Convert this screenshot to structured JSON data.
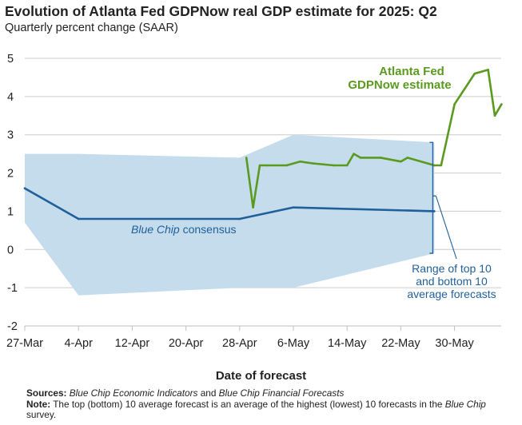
{
  "chart_data": {
    "type": "line",
    "title": "Evolution of Atlanta Fed GDPNow real GDP estimate for 2025: Q2",
    "subtitle": "Quarterly percent change (SAAR)",
    "xlabel": "Date of forecast",
    "ylabel": "",
    "ylim": [
      -2,
      5
    ],
    "yticks": [
      "5",
      "4",
      "3",
      "2",
      "1",
      "0",
      "-1",
      "-2"
    ],
    "xticks": [
      "27-Mar",
      "4-Apr",
      "12-Apr",
      "20-Apr",
      "28-Apr",
      "6-May",
      "14-May",
      "22-May",
      "30-May"
    ],
    "grid": true,
    "series": [
      {
        "name": "Atlanta Fed GDPNow estimate",
        "color": "#5a9a1f",
        "x": [
          "2025-04-29",
          "2025-04-30",
          "2025-05-01",
          "2025-05-02",
          "2025-05-05",
          "2025-05-07",
          "2025-05-09",
          "2025-05-12",
          "2025-05-14",
          "2025-05-15",
          "2025-05-16",
          "2025-05-19",
          "2025-05-22",
          "2025-05-23",
          "2025-05-27",
          "2025-05-28",
          "2025-05-30",
          "2025-06-02",
          "2025-06-04",
          "2025-06-05",
          "2025-06-06"
        ],
        "values": [
          2.4,
          1.1,
          2.2,
          2.2,
          2.2,
          2.3,
          2.25,
          2.2,
          2.2,
          2.5,
          2.4,
          2.4,
          2.3,
          2.4,
          2.2,
          2.2,
          3.8,
          4.6,
          4.7,
          3.5,
          3.8
        ]
      },
      {
        "name": "Blue Chip consensus",
        "color": "#1f5f9a",
        "x": [
          "2025-03-27",
          "2025-04-04",
          "2025-04-28",
          "2025-05-06",
          "2025-05-27"
        ],
        "values": [
          1.6,
          0.8,
          0.8,
          1.1,
          1.0
        ]
      }
    ],
    "band": {
      "label": "Range of top 10 and bottom 10 average forecasts",
      "color": "#c5dcec",
      "x": [
        "2025-03-27",
        "2025-04-04",
        "2025-04-28",
        "2025-05-06",
        "2025-05-27"
      ],
      "upper": [
        2.5,
        2.5,
        2.4,
        3.0,
        2.8
      ],
      "lower": [
        0.7,
        -1.2,
        -1.0,
        -1.0,
        -0.1
      ]
    },
    "annotations": {
      "gdpnow_line1": "Atlanta Fed",
      "gdpnow_line2": "GDPNow estimate",
      "bluechip_italic": "Blue Chip",
      "bluechip_rest": " consensus",
      "range_line1": "Range of top 10",
      "range_line2": "and bottom 10",
      "range_line3": "average forecasts"
    }
  },
  "footer": {
    "sources_label": "Sources:",
    "sources_text_1": "Blue Chip Economic Indicators",
    "sources_and": " and ",
    "sources_text_2": "Blue Chip Financial Forecasts",
    "note_label": "Note:",
    "note_text_1": " The top (bottom) 10 average forecast is an average of the highest (lowest) 10 forecasts in the ",
    "note_italic": "Blue Chip",
    "note_text_2": " survey."
  }
}
